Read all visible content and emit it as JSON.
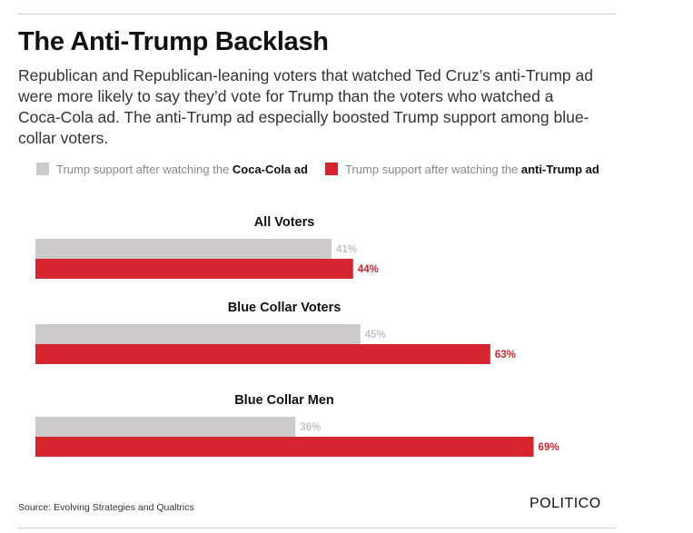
{
  "header": {
    "title": "The Anti-Trump Backlash",
    "subtitle": "Republican and Republican-leaning voters that watched Ted Cruz’s anti-Trump ad were more likely to say they’d vote for Trump than the voters who watched a Coca-Cola ad. The anti-Trump ad especially boosted Trump support among blue-collar voters."
  },
  "legend": {
    "coke_prefix": "Trump support after watching the ",
    "coke_bold": "Coca-Cola ad",
    "anti_prefix": "Trump support after watching the ",
    "anti_bold": "anti-Trump ad"
  },
  "colors": {
    "coke": "#cccaca",
    "anti": "#d7252f",
    "coke_label": "#c4c4c4",
    "anti_label": "#d7252f"
  },
  "chart_data": {
    "type": "bar",
    "orientation": "horizontal",
    "categories": [
      "All Voters",
      "Blue Collar Voters",
      "Blue Collar Men"
    ],
    "series": [
      {
        "name": "Trump support after watching the Coca-Cola ad",
        "values": [
          41,
          45,
          36
        ],
        "labels": [
          "41%",
          "45%",
          "36%"
        ]
      },
      {
        "name": "Trump support after watching the anti-Trump ad",
        "values": [
          44,
          63,
          69
        ],
        "labels": [
          "44%",
          "63%",
          "69%"
        ]
      }
    ],
    "value_unit": "%",
    "xlim": [
      0,
      100
    ],
    "title": "The Anti-Trump Backlash",
    "legend_position": "top"
  },
  "footer": {
    "source": "Source: Evolving Strategies and Qualtrics",
    "brand": "POLITICO"
  }
}
